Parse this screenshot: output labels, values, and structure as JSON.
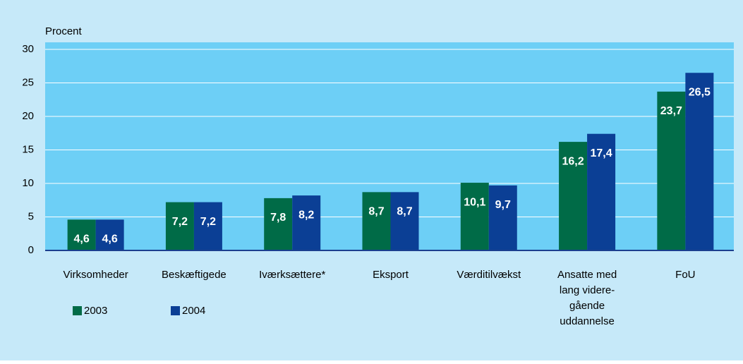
{
  "chart_data": {
    "type": "bar",
    "y_label": "Procent",
    "categories": [
      [
        "Virksomheder"
      ],
      [
        "Beskæftigede"
      ],
      [
        "Iværksættere*"
      ],
      [
        "Eksport"
      ],
      [
        "Værditilvækst"
      ],
      [
        "Ansatte med",
        "lang videre-",
        "gående",
        "uddannelse"
      ],
      [
        "FoU"
      ]
    ],
    "series": [
      {
        "name": "2003",
        "color": "#006b47",
        "values": [
          4.6,
          7.2,
          7.8,
          8.7,
          10.1,
          16.2,
          23.7
        ],
        "value_labels": [
          "4,6",
          "7,2",
          "7,8",
          "8,7",
          "10,1",
          "16,2",
          "23,7"
        ]
      },
      {
        "name": "2004",
        "color": "#0b3f95",
        "values": [
          4.6,
          7.2,
          8.2,
          8.7,
          9.7,
          17.4,
          26.5
        ],
        "value_labels": [
          "4,6",
          "7,2",
          "8,2",
          "8,7",
          "9,7",
          "17,4",
          "26,5"
        ]
      }
    ],
    "ylim": [
      0,
      30
    ],
    "yticks": [
      0,
      5,
      10,
      15,
      20,
      25,
      30
    ],
    "grid": true
  }
}
